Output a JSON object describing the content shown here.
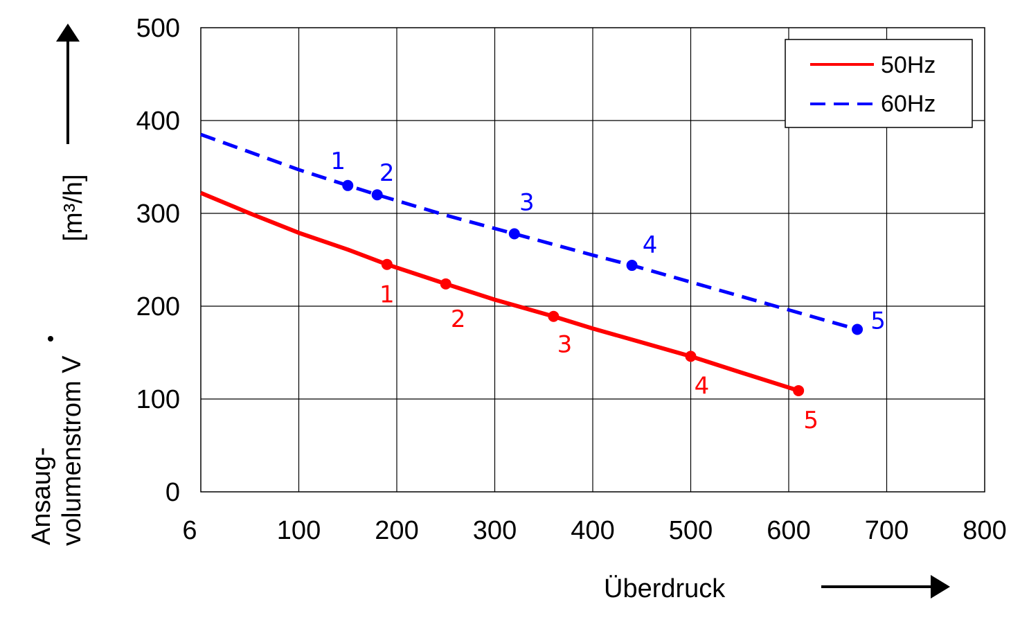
{
  "chart_data": {
    "type": "line",
    "xlabel": "Überdruck",
    "ylabel_line1": "Ansaug-",
    "ylabel_line2": "volumenstrom V",
    "yunit": "[m³/h]",
    "x_tick_labels": [
      "6",
      "100",
      "200",
      "300",
      "400",
      "500",
      "600",
      "700",
      "800"
    ],
    "y_tick_labels": [
      "0",
      "100",
      "200",
      "300",
      "400",
      "500"
    ],
    "xlim": [
      0,
      800
    ],
    "ylim": [
      0,
      500
    ],
    "grid": true,
    "legend_position": "top-right",
    "series": [
      {
        "name": "50Hz",
        "color": "#ff0000",
        "style": "solid",
        "curve_x": [
          0,
          50,
          100,
          150,
          190,
          250,
          300,
          360,
          400,
          450,
          500,
          550,
          610
        ],
        "curve_y": [
          322,
          300,
          279,
          261,
          245,
          224,
          207,
          189,
          176,
          161,
          146,
          129,
          109
        ],
        "points": [
          {
            "label": "1",
            "x": 190,
            "y": 245
          },
          {
            "label": "2",
            "x": 250,
            "y": 224
          },
          {
            "label": "3",
            "x": 360,
            "y": 189
          },
          {
            "label": "4",
            "x": 500,
            "y": 146
          },
          {
            "label": "5",
            "x": 610,
            "y": 109
          }
        ]
      },
      {
        "name": "60Hz",
        "color": "#0000ff",
        "style": "dashed",
        "curve_x": [
          0,
          100,
          150,
          180,
          250,
          320,
          400,
          440,
          500,
          600,
          670
        ],
        "curve_y": [
          385,
          347,
          330,
          320,
          298,
          278,
          255,
          244,
          226,
          196,
          175
        ],
        "points": [
          {
            "label": "1",
            "x": 150,
            "y": 330
          },
          {
            "label": "2",
            "x": 180,
            "y": 320
          },
          {
            "label": "3",
            "x": 320,
            "y": 278
          },
          {
            "label": "4",
            "x": 440,
            "y": 244
          },
          {
            "label": "5",
            "x": 670,
            "y": 175
          }
        ]
      }
    ]
  }
}
